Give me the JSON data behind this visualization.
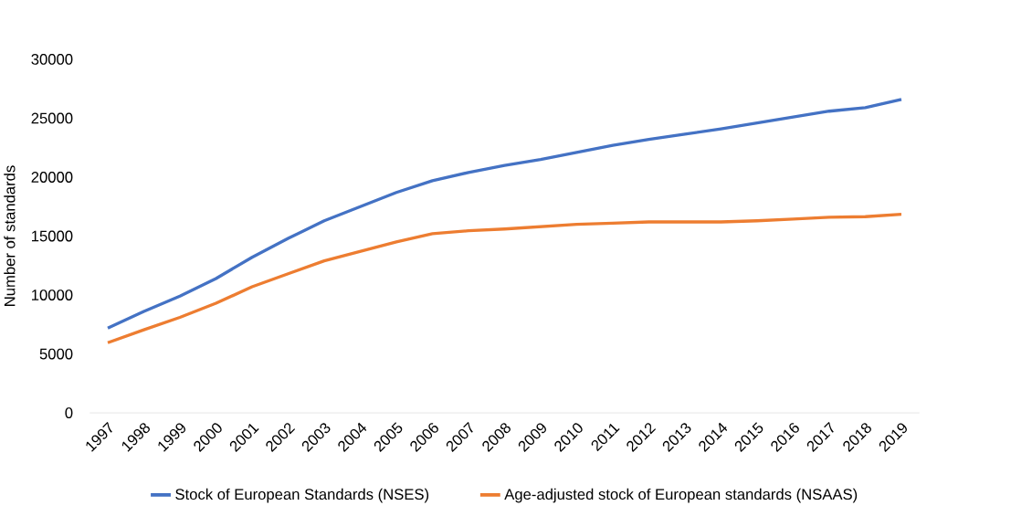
{
  "chart_data": {
    "type": "line",
    "ylabel": "Number of standards",
    "categories": [
      "1997",
      "1998",
      "1999",
      "2000",
      "2001",
      "2002",
      "2003",
      "2004",
      "2005",
      "2006",
      "2007",
      "2008",
      "2009",
      "2010",
      "2011",
      "2012",
      "2013",
      "2014",
      "2015",
      "2016",
      "2017",
      "2018",
      "2019"
    ],
    "series": [
      {
        "name": "Stock of European Standards (NSES)",
        "color": "#4472c4",
        "values": [
          7200,
          8600,
          9900,
          11400,
          13200,
          14800,
          16300,
          17500,
          18700,
          19700,
          20400,
          21000,
          21500,
          22100,
          22700,
          23200,
          23650,
          24100,
          24600,
          25100,
          25600,
          25900,
          26600
        ]
      },
      {
        "name": "Age-adjusted stock of European standards (NSAAS)",
        "color": "#ed7d31",
        "values": [
          5950,
          7050,
          8100,
          9300,
          10700,
          11800,
          12900,
          13700,
          14500,
          15200,
          15450,
          15600,
          15800,
          16000,
          16100,
          16200,
          16200,
          16200,
          16300,
          16450,
          16600,
          16650,
          16850
        ]
      }
    ],
    "ylim": [
      0,
      30000
    ],
    "yticks": [
      0,
      5000,
      10000,
      15000,
      20000,
      25000,
      30000
    ],
    "grid": false,
    "legend": "bottom",
    "marker": "none",
    "line_style": "solid"
  }
}
